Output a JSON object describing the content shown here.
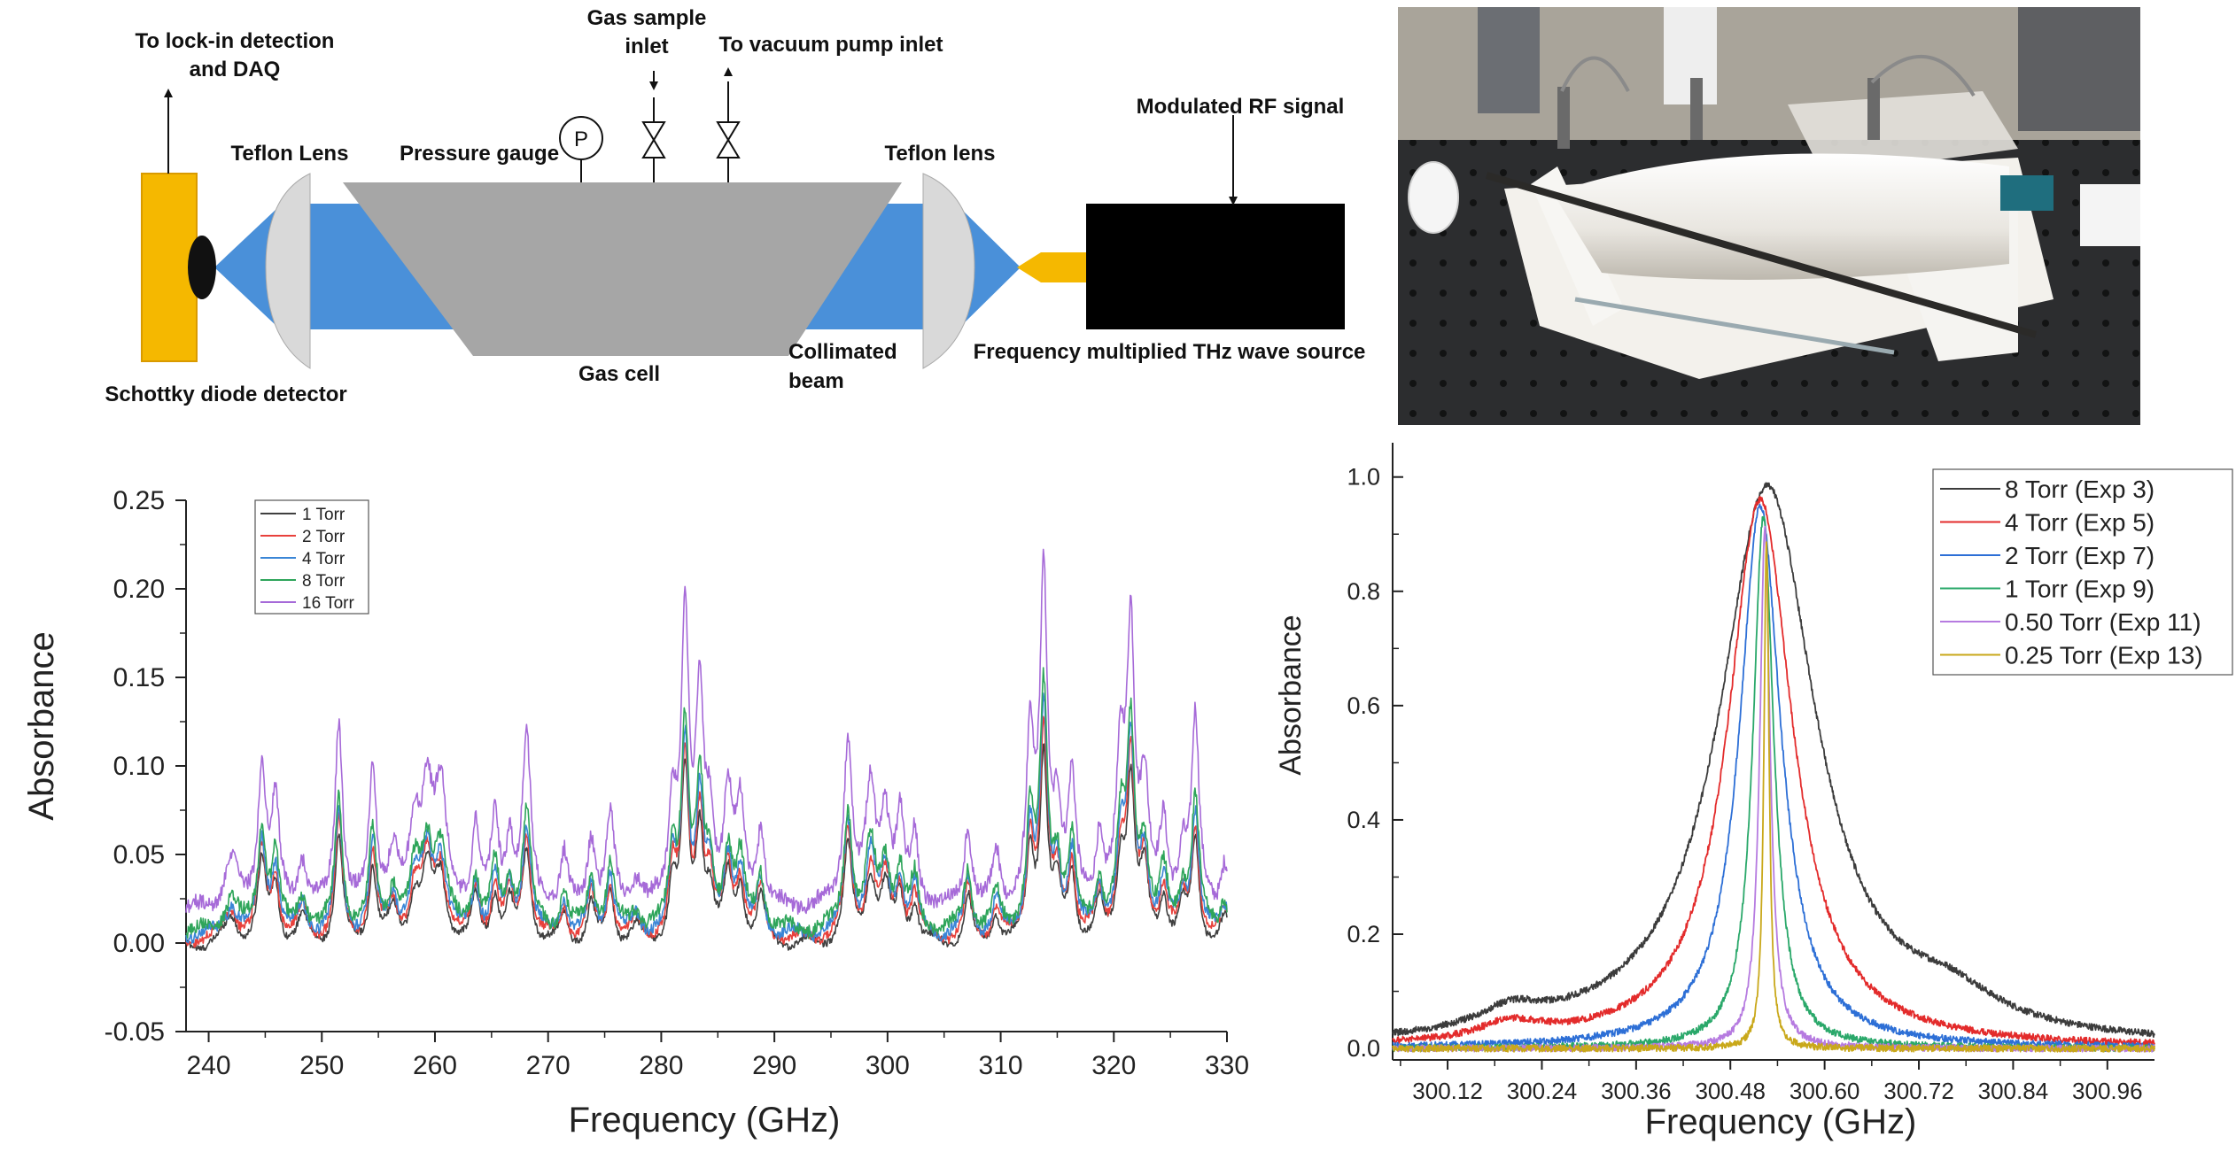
{
  "schematic": {
    "labels": {
      "lockin": [
        "To lock-in detection",
        "and DAQ"
      ],
      "gas_sample": [
        "Gas sample",
        "inlet"
      ],
      "vacuum": "To vacuum pump inlet",
      "modulated_rf": "Modulated RF signal",
      "teflon_lens_left": "Teflon Lens",
      "pressure_gauge": "Pressure gauge",
      "gauge_symbol": "P",
      "teflon_lens_right": "Teflon lens",
      "detector": "Schottky diode detector",
      "gas_cell": "Gas cell",
      "collimated": [
        "Collimated",
        "beam"
      ],
      "source": "Frequency multiplied THz wave source"
    },
    "colors": {
      "beam": "#4a90d9",
      "cell": "#a6a6a6",
      "detector": "#f5b800",
      "source": "#000000",
      "lens": "#d9d9d9"
    }
  },
  "photo": {
    "icon": "experimental-setup-photo"
  },
  "chart_data": [
    {
      "type": "line",
      "xlabel": "Frequency (GHz)",
      "ylabel": "Absorbance",
      "xlim": [
        238,
        330
      ],
      "ylim": [
        -0.05,
        0.25
      ],
      "xticks": [
        "240",
        "250",
        "260",
        "270",
        "280",
        "290",
        "300",
        "310",
        "320",
        "330"
      ],
      "yticks": [
        "-0.05",
        "0.00",
        "0.05",
        "0.10",
        "0.15",
        "0.20",
        "0.25"
      ],
      "legend_position": "top-left",
      "grid": false,
      "peaks": [
        {
          "x": 242.0,
          "w": 0.7,
          "a": 0.25
        },
        {
          "x": 244.7,
          "w": 0.45,
          "a": 0.75
        },
        {
          "x": 245.9,
          "w": 0.4,
          "a": 0.55
        },
        {
          "x": 248.3,
          "w": 0.5,
          "a": 0.25
        },
        {
          "x": 251.5,
          "w": 0.4,
          "a": 1.0
        },
        {
          "x": 254.5,
          "w": 0.4,
          "a": 0.72
        },
        {
          "x": 256.3,
          "w": 0.5,
          "a": 0.3
        },
        {
          "x": 258.2,
          "w": 0.5,
          "a": 0.4
        },
        {
          "x": 259.3,
          "w": 0.6,
          "a": 0.62
        },
        {
          "x": 260.5,
          "w": 0.6,
          "a": 0.6
        },
        {
          "x": 263.6,
          "w": 0.4,
          "a": 0.42
        },
        {
          "x": 265.3,
          "w": 0.4,
          "a": 0.46
        },
        {
          "x": 266.6,
          "w": 0.4,
          "a": 0.35
        },
        {
          "x": 268.1,
          "w": 0.45,
          "a": 0.9
        },
        {
          "x": 271.4,
          "w": 0.4,
          "a": 0.28
        },
        {
          "x": 273.8,
          "w": 0.4,
          "a": 0.38
        },
        {
          "x": 275.5,
          "w": 0.4,
          "a": 0.5
        },
        {
          "x": 277.8,
          "w": 0.5,
          "a": 0.15
        },
        {
          "x": 281.0,
          "w": 0.4,
          "a": 0.55
        },
        {
          "x": 282.1,
          "w": 0.4,
          "a": 1.55
        },
        {
          "x": 283.4,
          "w": 0.4,
          "a": 1.05
        },
        {
          "x": 284.3,
          "w": 0.4,
          "a": 0.45
        },
        {
          "x": 285.9,
          "w": 0.45,
          "a": 0.6
        },
        {
          "x": 287.0,
          "w": 0.45,
          "a": 0.5
        },
        {
          "x": 288.8,
          "w": 0.4,
          "a": 0.42
        },
        {
          "x": 296.5,
          "w": 0.45,
          "a": 0.9
        },
        {
          "x": 298.5,
          "w": 0.5,
          "a": 0.62
        },
        {
          "x": 299.8,
          "w": 0.5,
          "a": 0.5
        },
        {
          "x": 301.1,
          "w": 0.4,
          "a": 0.45
        },
        {
          "x": 302.4,
          "w": 0.4,
          "a": 0.38
        },
        {
          "x": 307.1,
          "w": 0.4,
          "a": 0.45
        },
        {
          "x": 309.6,
          "w": 0.4,
          "a": 0.28
        },
        {
          "x": 312.6,
          "w": 0.4,
          "a": 0.85
        },
        {
          "x": 313.8,
          "w": 0.4,
          "a": 1.75
        },
        {
          "x": 315.0,
          "w": 0.4,
          "a": 0.5
        },
        {
          "x": 316.3,
          "w": 0.4,
          "a": 0.65
        },
        {
          "x": 318.7,
          "w": 0.4,
          "a": 0.35
        },
        {
          "x": 320.6,
          "w": 0.45,
          "a": 0.75
        },
        {
          "x": 321.5,
          "w": 0.4,
          "a": 1.45
        },
        {
          "x": 322.7,
          "w": 0.45,
          "a": 0.65
        },
        {
          "x": 324.4,
          "w": 0.4,
          "a": 0.42
        },
        {
          "x": 326.1,
          "w": 0.4,
          "a": 0.3
        },
        {
          "x": 327.2,
          "w": 0.4,
          "a": 1.0
        },
        {
          "x": 329.8,
          "w": 0.4,
          "a": 0.25
        }
      ],
      "series": [
        {
          "name": "1 Torr",
          "color": "#404040",
          "scale": 0.06,
          "offset": -0.002
        },
        {
          "name": "2 Torr",
          "color": "#e8413c",
          "scale": 0.065,
          "offset": 0.001
        },
        {
          "name": "4 Torr",
          "color": "#3b86d6",
          "scale": 0.07,
          "offset": 0.003
        },
        {
          "name": "8 Torr",
          "color": "#2ea55a",
          "scale": 0.075,
          "offset": 0.006
        },
        {
          "name": "16 Torr",
          "color": "#a66ad8",
          "scale": 0.105,
          "offset": 0.018
        }
      ]
    },
    {
      "type": "line",
      "xlabel": "Frequency (GHz)",
      "ylabel": "Absorbance",
      "xlim": [
        300.05,
        301.02
      ],
      "ylim": [
        -0.02,
        1.06
      ],
      "xticks": [
        "300.12",
        "300.24",
        "300.36",
        "300.48",
        "300.60",
        "300.72",
        "300.84",
        "300.96"
      ],
      "yticks": [
        "0.0",
        "0.2",
        "0.4",
        "0.6",
        "0.8",
        "1.0"
      ],
      "legend_position": "top-right",
      "grid": false,
      "series": [
        {
          "name": "8 Torr (Exp 3)",
          "color": "#3c3c3c",
          "center": 300.527,
          "width": 0.075,
          "peak": 0.98
        },
        {
          "name": "4 Torr (Exp  5)",
          "color": "#e32b2b",
          "center": 300.518,
          "width": 0.05,
          "peak": 0.96
        },
        {
          "name": "2 Torr (Exp  7)",
          "color": "#2d6fd6",
          "center": 300.518,
          "width": 0.032,
          "peak": 0.95
        },
        {
          "name": "1 Torr (Exp 9)",
          "color": "#2aa86a",
          "center": 300.522,
          "width": 0.016,
          "peak": 0.93
        },
        {
          "name": "0.50 Torr (Exp 11)",
          "color": "#b67be0",
          "center": 300.524,
          "width": 0.008,
          "peak": 0.91
        },
        {
          "name": "0.25 Torr (Exp 13)",
          "color": "#c9a81a",
          "center": 300.526,
          "width": 0.004,
          "peak": 0.89
        }
      ]
    }
  ]
}
